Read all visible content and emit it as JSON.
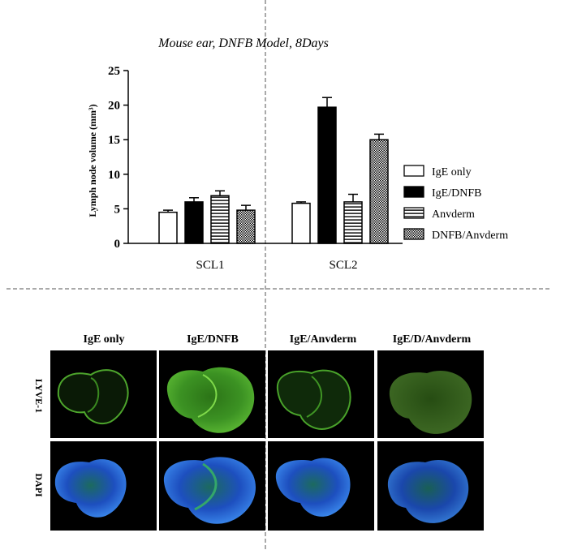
{
  "chart_data": {
    "type": "bar",
    "title": "Mouse ear, DNFB Model, 8Days",
    "ylabel": "Lymph node volume (mm³)",
    "xlabel": "",
    "ylim": [
      0,
      25
    ],
    "yticks": [
      "0",
      "5",
      "10",
      "15",
      "20",
      "25"
    ],
    "categories": [
      "SCL1",
      "SCL2"
    ],
    "legend_position": "right",
    "grid": false,
    "series": [
      {
        "name": "IgE only",
        "pattern": "open",
        "values": [
          4.5,
          5.8
        ],
        "errors": [
          0.3,
          0.2
        ]
      },
      {
        "name": "IgE/DNFB",
        "pattern": "solid",
        "values": [
          6.0,
          19.7
        ],
        "errors": [
          0.6,
          1.4
        ]
      },
      {
        "name": "Anvderm",
        "pattern": "horizontal",
        "values": [
          6.9,
          6.0
        ],
        "errors": [
          0.7,
          1.1
        ]
      },
      {
        "name": "DNFB/Anvderm",
        "pattern": "crosshatch",
        "values": [
          4.8,
          15.0
        ],
        "errors": [
          0.7,
          0.8
        ]
      }
    ]
  },
  "micrograph_panel": {
    "column_headers": [
      "IgE only",
      "IgE/DNFB",
      "IgE/Anvderm",
      "IgE/D/Anvderm"
    ],
    "row_labels": [
      "LYVE-1",
      "DAPI"
    ],
    "colors": {
      "lyve1_green": "#3e9a26",
      "dapi_blue": "#1f5fd6",
      "background": "#000000"
    }
  }
}
